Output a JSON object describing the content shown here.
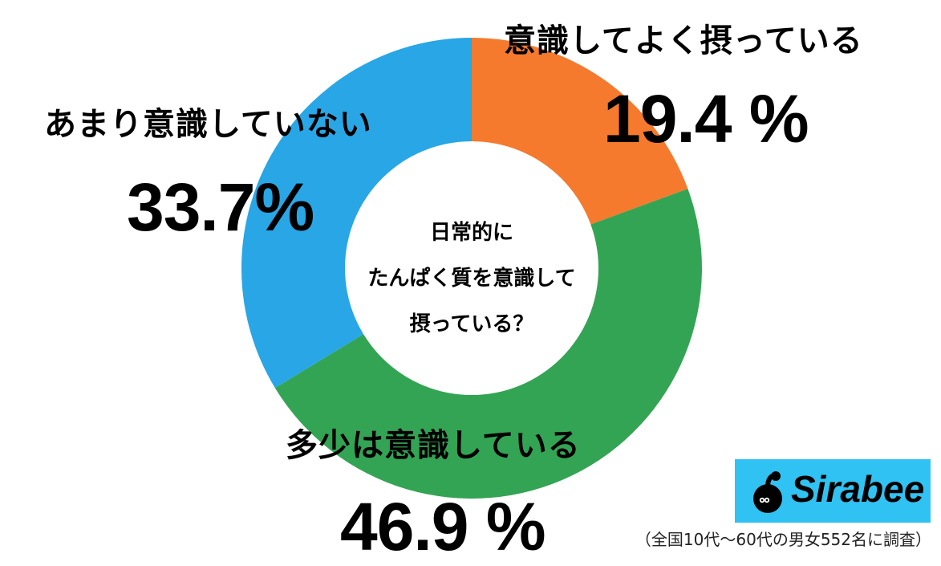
{
  "chart_data": {
    "type": "pie",
    "subtype": "donut",
    "title": "日常的にたんぱく質を意識して摂っている？",
    "center_text_lines": [
      "日常的に",
      "たんぱく質を意識して",
      "摂っている？"
    ],
    "categories": [
      "意識してよく摂っている",
      "多少は意識している",
      "あまり意識していない"
    ],
    "values": [
      19.4,
      46.9,
      33.7
    ],
    "value_labels": [
      "19.4 %",
      "46.9 %",
      "33.7%"
    ],
    "colors": [
      "#f57a2d",
      "#33a454",
      "#28a6e6"
    ],
    "start_angle_deg": 0,
    "direction": "clockwise",
    "legend": "none (labels placed next to slices)",
    "footnote": "（全国10代〜60代の男女552名に調査）"
  },
  "labels": {
    "orange_category": "意識してよく摂っている",
    "orange_value": "19.4 %",
    "green_category": "多少は意識している",
    "green_value": "46.9 %",
    "blue_category": "あまり意識していない",
    "blue_value": "33.7%"
  },
  "center": {
    "line1": "日常的に",
    "line2": "たんぱく質を意識して",
    "line3": "摂っている？"
  },
  "logo": {
    "text": "Sirabee",
    "bg_color": "#30c2f2"
  },
  "footnote": "（全国10代〜60代の男女552名に調査）"
}
